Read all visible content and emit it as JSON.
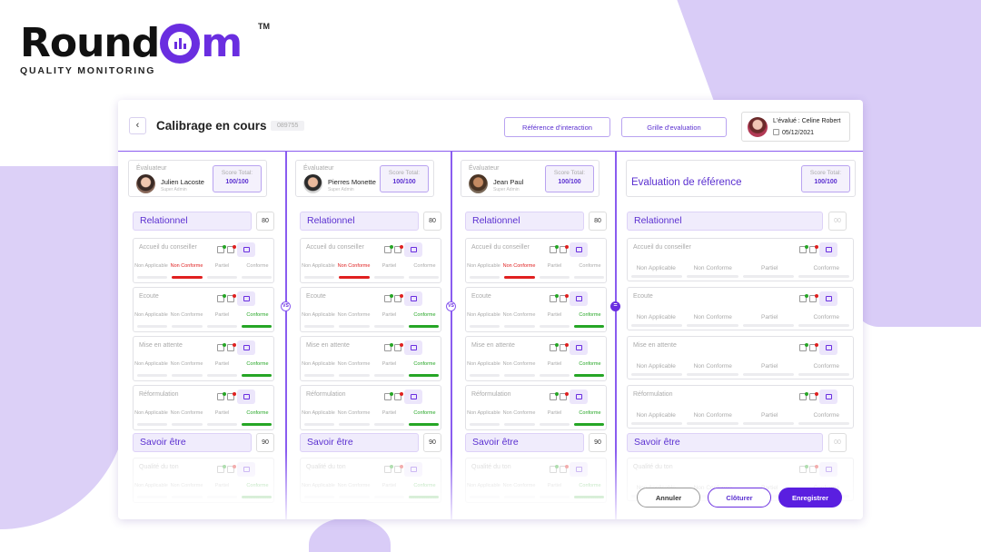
{
  "brand": {
    "name_left": "Round",
    "name_right": "m",
    "tm": "TM",
    "tagline": "QUALITY MONITORING",
    "accent": "#6a2ee0"
  },
  "header": {
    "back_icon": "‹",
    "title": "Calibrage en cours",
    "id": "089755",
    "reference_button": "Référence d'interaction",
    "grid_button": "Grille d'evaluation",
    "evaluee": "L'évalué : Celine Robert",
    "date": "05/12/2021"
  },
  "labels": {
    "evaluator": "Évaluateur",
    "score_total": "Score Total:",
    "reference_title": "Evaluation de référence",
    "vs": "VS",
    "equals": "="
  },
  "evaluators": [
    {
      "name": "Julien Lacoste",
      "role": "Super Admin",
      "score": "100/100"
    },
    {
      "name": "Pierres Monette",
      "role": "Super Admin",
      "score": "100/100"
    },
    {
      "name": "Jean Paul",
      "role": "Super Admin",
      "score": "100/100"
    }
  ],
  "reference": {
    "score": "100/100"
  },
  "categories": [
    {
      "name": "Relationnel",
      "score": "80",
      "ref_score": "00"
    },
    {
      "name": "Savoir être",
      "score": "90",
      "ref_score": "00"
    }
  ],
  "criteria": [
    "Accueil du conseiller",
    "Ecoute",
    "Mise en attente",
    "Réformulation",
    "Qualité du ton"
  ],
  "options_short": [
    "Non Applicable",
    "Non Conforme",
    "Partiel",
    "Conforme"
  ],
  "options_ref": [
    "Non Applicable",
    "Non Conforme",
    "Partiel",
    "Conforme"
  ],
  "footer": {
    "cancel": "Annuler",
    "close": "Clôturer",
    "save": "Enregistrer"
  },
  "colors": {
    "conforme": "#26a626",
    "non_conforme": "#e02020",
    "primary_button": "#5a1fe0"
  }
}
